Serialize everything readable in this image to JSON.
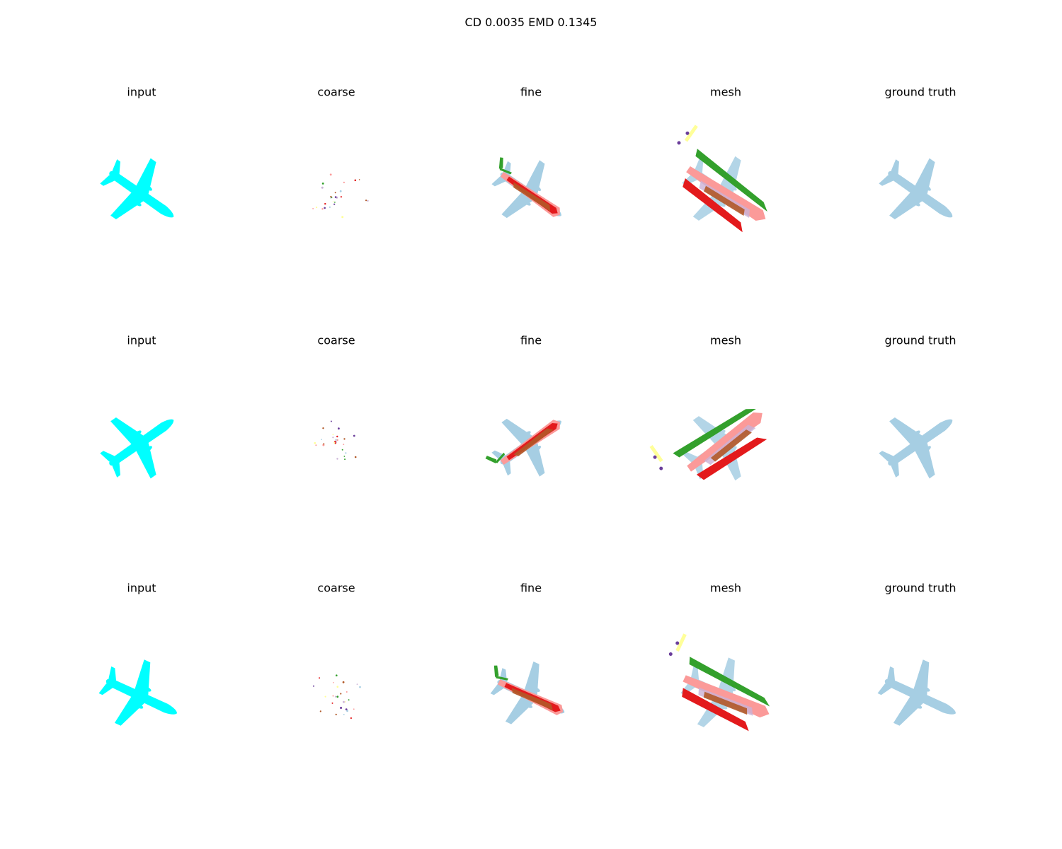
{
  "figure": {
    "title": "CD 0.0035  EMD 0.1345",
    "column_titles": [
      "input",
      "coarse",
      "fine",
      "mesh",
      "ground truth"
    ],
    "rows": 3
  },
  "colors": {
    "input": "#00ffff",
    "ground_truth": "#a6cee3",
    "red": "#e31a1c",
    "pink": "#fb9a99",
    "brown": "#b15928",
    "green": "#33a02c",
    "lavender": "#cab2d6",
    "purple": "#6a3d9a",
    "yellow": "#ffff99"
  }
}
